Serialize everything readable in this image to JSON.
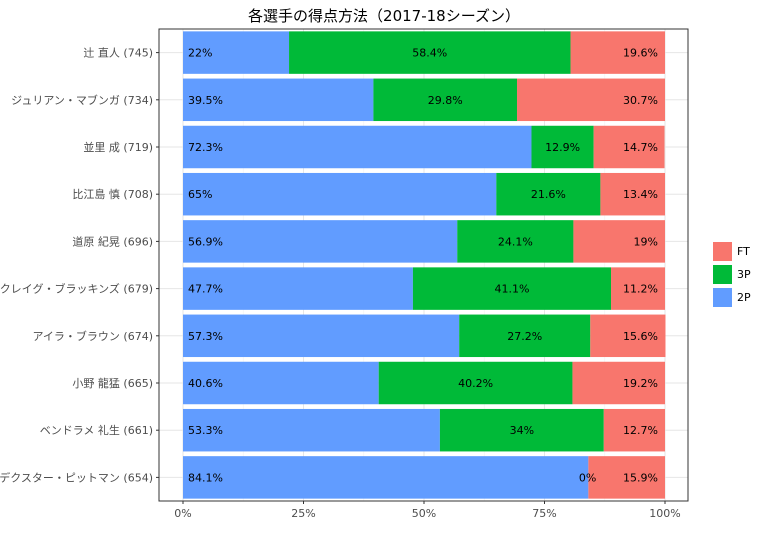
{
  "chart_data": {
    "type": "bar",
    "orientation": "horizontal",
    "stacked": true,
    "title": "各選手の得点方法（2017-18シーズン）",
    "categories": [
      "辻 直人 (745)",
      "ジュリアン・マブンガ (734)",
      "並里 成 (719)",
      "比江島 慎 (708)",
      "道原 紀晃 (696)",
      "クレイグ・ブラッキンズ (679)",
      "アイラ・ブラウン (674)",
      "小野 龍猛 (665)",
      "ベンドラメ 礼生 (661)",
      "デクスター・ピットマン (654)"
    ],
    "series": [
      {
        "name": "2P",
        "color": "#619CFF",
        "values": [
          22,
          39.5,
          72.3,
          65,
          56.9,
          47.7,
          57.3,
          40.6,
          53.3,
          84.1
        ],
        "labels": [
          "22%",
          "39.5%",
          "72.3%",
          "65%",
          "56.9%",
          "47.7%",
          "57.3%",
          "40.6%",
          "53.3%",
          "84.1%"
        ]
      },
      {
        "name": "3P",
        "color": "#00BA38",
        "values": [
          58.4,
          29.8,
          12.9,
          21.6,
          24.1,
          41.1,
          27.2,
          40.2,
          34,
          0
        ],
        "labels": [
          "58.4%",
          "29.8%",
          "12.9%",
          "21.6%",
          "24.1%",
          "41.1%",
          "27.2%",
          "40.2%",
          "34%",
          "0%"
        ]
      },
      {
        "name": "FT",
        "color": "#F8766D",
        "values": [
          19.6,
          30.7,
          14.7,
          13.4,
          19,
          11.2,
          15.6,
          19.2,
          12.7,
          15.9
        ],
        "labels": [
          "19.6%",
          "30.7%",
          "14.7%",
          "13.4%",
          "19%",
          "11.2%",
          "15.6%",
          "19.2%",
          "12.7%",
          "15.9%"
        ]
      }
    ],
    "x_ticks": [
      "0%",
      "25%",
      "50%",
      "75%",
      "100%"
    ],
    "xlim": [
      0,
      100
    ],
    "legend": {
      "position": "right",
      "order": [
        "FT",
        "3P",
        "2P"
      ]
    },
    "grid": true
  }
}
